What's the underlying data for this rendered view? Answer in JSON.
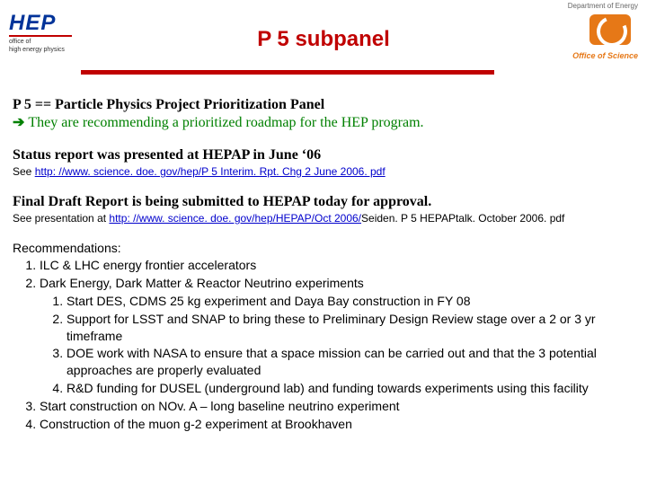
{
  "header": {
    "dept": "Department of Energy",
    "office": "Office of Science",
    "hep": "HEP",
    "hep_sub1": "office of",
    "hep_sub2": "high energy physics",
    "title": "P 5 subpanel"
  },
  "body": {
    "p5def": "P 5 == Particle Physics Project Prioritization Panel",
    "arrow": "➔",
    "rec_line": "They are recommending a prioritized roadmap for the HEP program.",
    "status_head": "Status report was presented at HEPAP in June ‘06",
    "see1_prefix": "See ",
    "see1_link": "http: //www. science. doe. gov/hep/P 5 Interim. Rpt. Chg 2 June 2006. pdf",
    "final_head": "Final Draft Report is being submitted to HEPAP today for approval.",
    "see2_prefix": "See presentation at ",
    "see2_link": "http: //www. science. doe. gov/hep/HEPAP/Oct 2006/",
    "see2_tail": "Seiden. P 5 HEPAPtalk. October 2006. pdf",
    "rec_head": "Recommendations:",
    "items": {
      "i1": "ILC & LHC energy frontier accelerators",
      "i2": "Dark Energy, Dark Matter & Reactor Neutrino experiments",
      "i2_1": "Start DES, CDMS 25 kg experiment and Daya Bay construction in FY 08",
      "i2_2": "Support for LSST and SNAP to bring these to Preliminary Design Review stage over a 2 or 3 yr timeframe",
      "i2_3": "DOE work with NASA to ensure that a space mission can be carried out and that the 3 potential approaches are properly evaluated",
      "i2_4": "R&D funding for DUSEL (underground lab) and funding towards experiments using this facility",
      "i3": "Start construction on NOv. A – long baseline neutrino experiment",
      "i4": "Construction of the muon g-2 experiment at Brookhaven"
    }
  }
}
